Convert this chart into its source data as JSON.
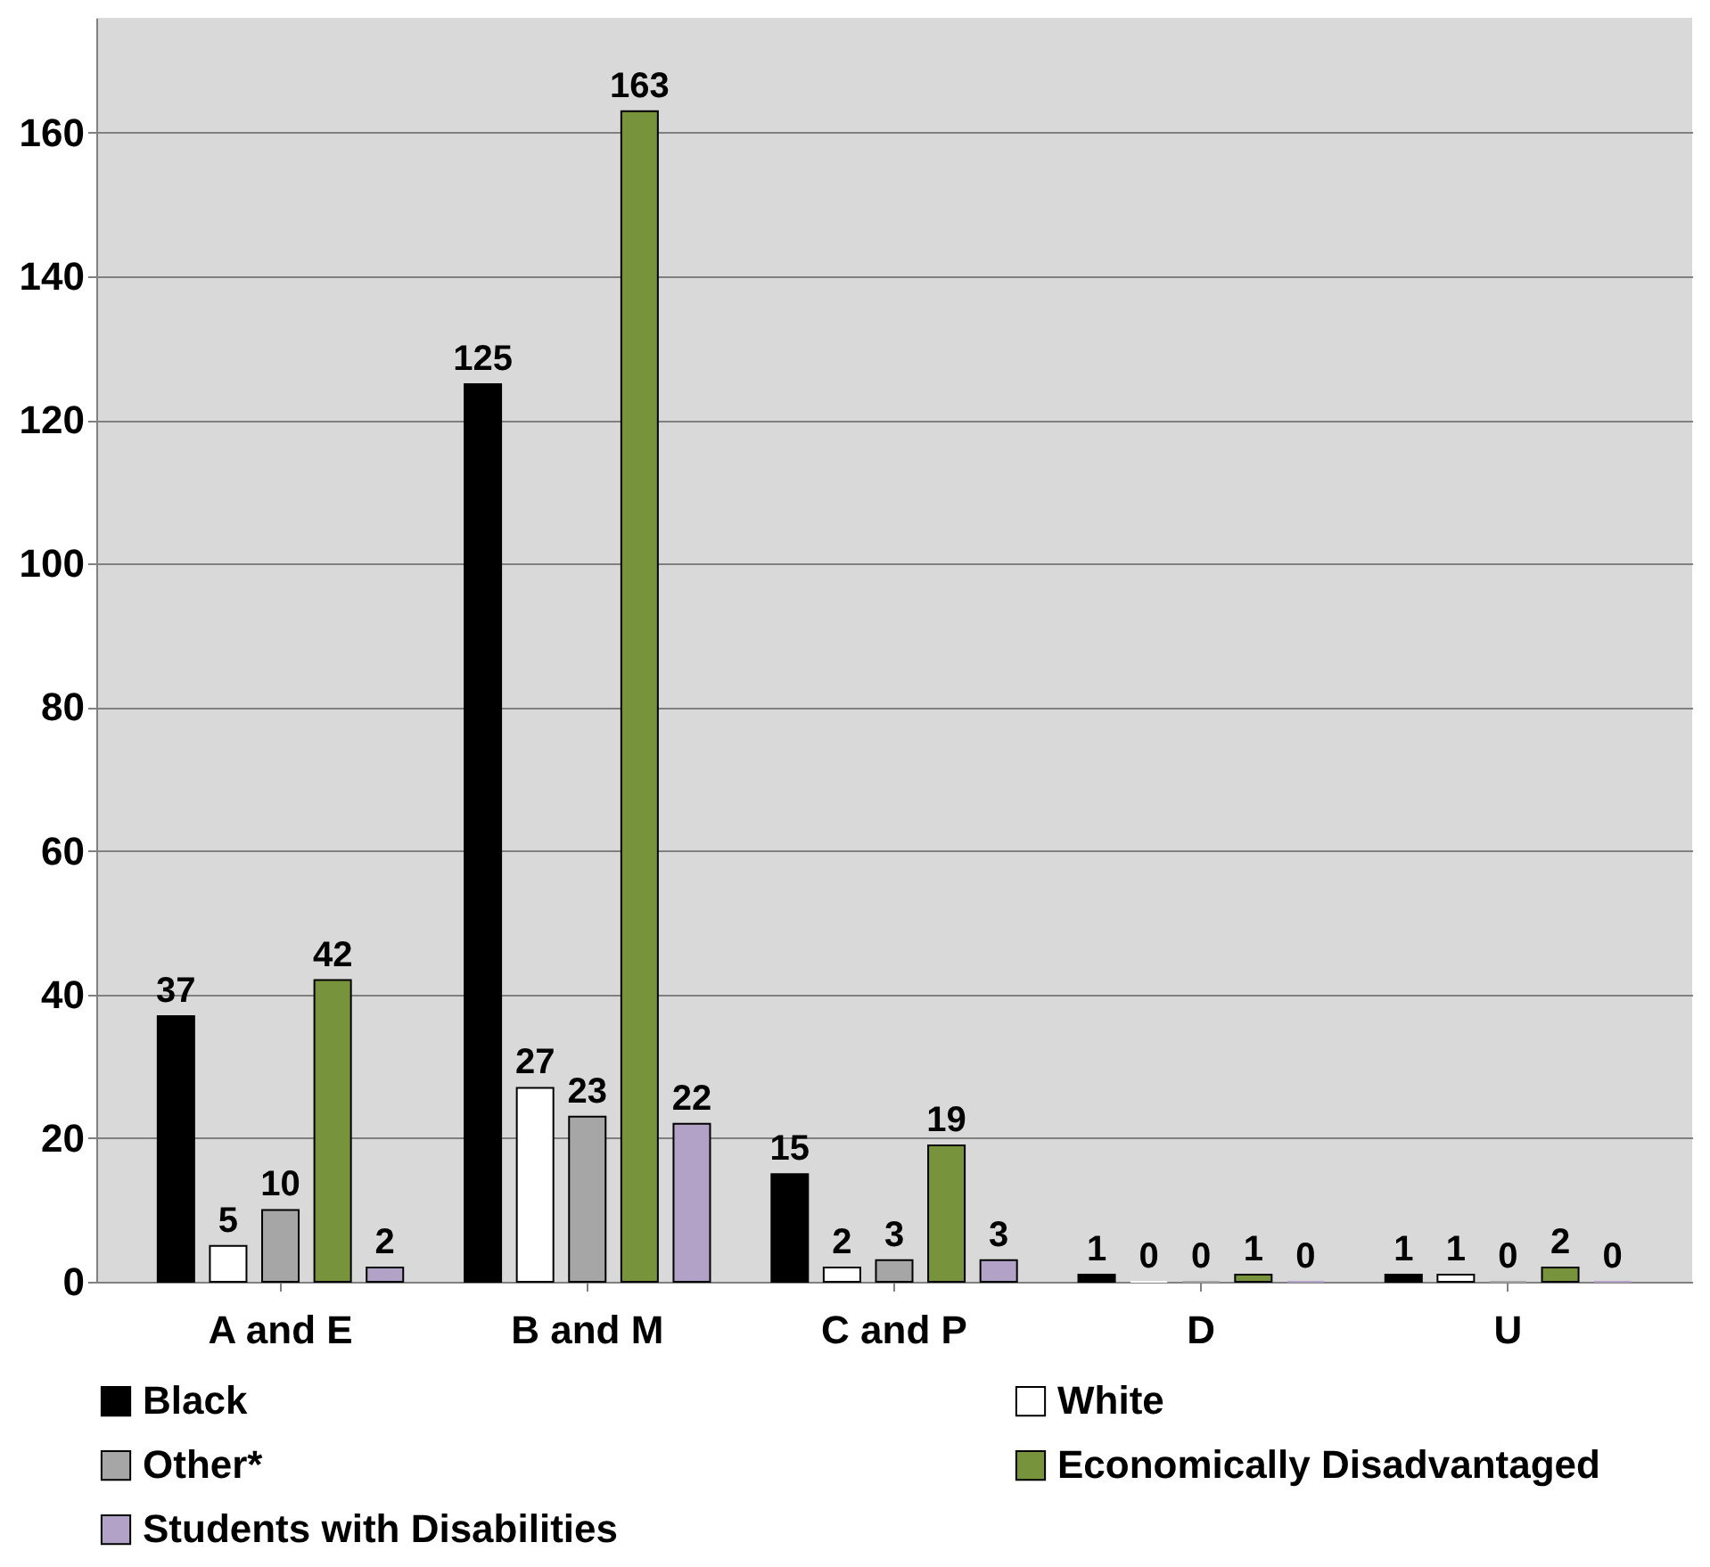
{
  "chart_data": {
    "type": "bar",
    "categories": [
      "A and E",
      "B and M",
      "C and P",
      "D",
      "U"
    ],
    "series": [
      {
        "name": "Black",
        "color": "#000000",
        "values": [
          37,
          125,
          15,
          1,
          1
        ]
      },
      {
        "name": "White",
        "color": "#ffffff",
        "values": [
          5,
          27,
          2,
          0,
          1
        ]
      },
      {
        "name": "Other*",
        "color": "#a6a6a6",
        "values": [
          10,
          23,
          3,
          0,
          0
        ]
      },
      {
        "name": "Economically Disadvantaged",
        "color": "#77933c",
        "values": [
          42,
          163,
          19,
          1,
          2
        ]
      },
      {
        "name": "Students with Disabilities",
        "color": "#b3a2c7",
        "values": [
          2,
          22,
          3,
          0,
          0
        ]
      }
    ],
    "ylim": [
      0,
      176
    ],
    "yticks": [
      0,
      20,
      40,
      60,
      80,
      100,
      120,
      140,
      160
    ],
    "grid": "y",
    "legend": "bottom",
    "data_labels": true
  }
}
